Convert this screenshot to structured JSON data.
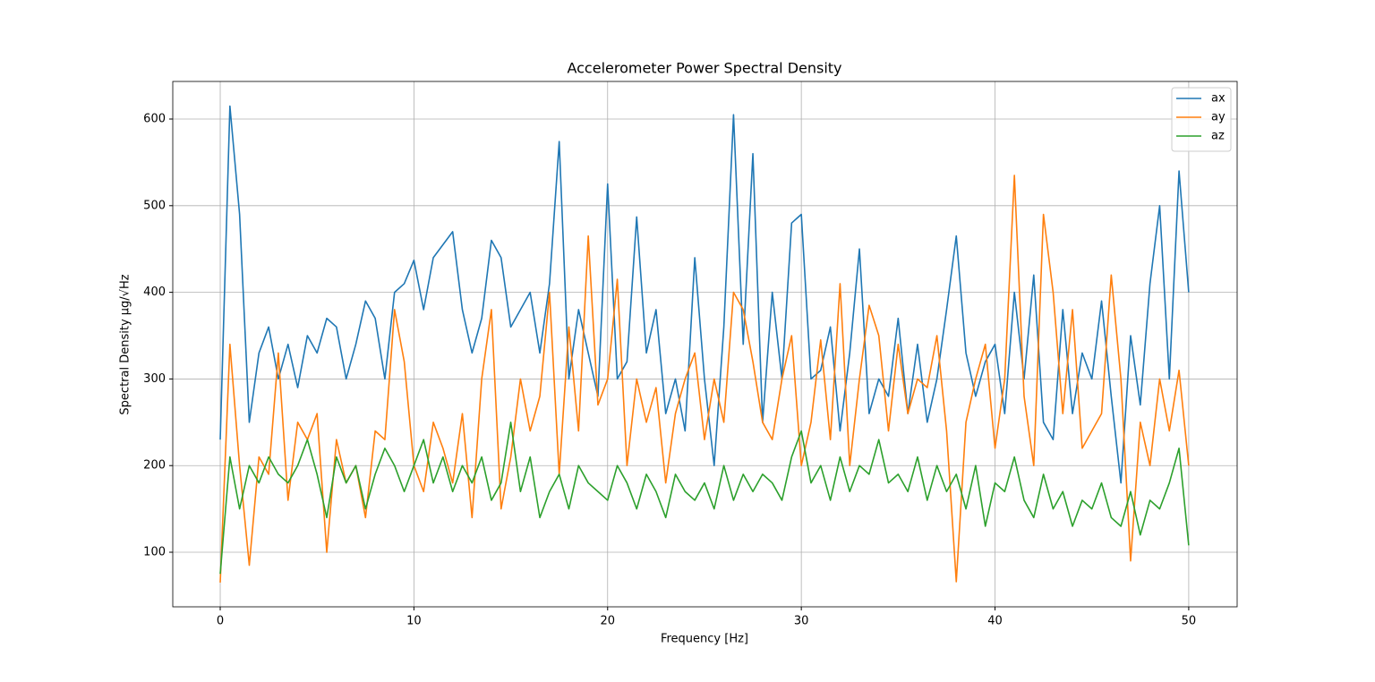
{
  "chart_data": {
    "type": "line",
    "title": "Accelerometer Power Spectral Density",
    "x_label": "Frequency [Hz]",
    "y_label": "Spectral Density  μg/√Hz",
    "x": [
      0,
      0.5,
      1,
      1.5,
      2,
      2.5,
      3,
      3.5,
      4,
      4.5,
      5,
      5.5,
      6,
      6.5,
      7,
      7.5,
      8,
      8.5,
      9,
      9.5,
      10,
      10.5,
      11,
      11.5,
      12,
      12.5,
      13,
      13.5,
      14,
      14.5,
      15,
      15.5,
      16,
      16.5,
      17,
      17.5,
      18,
      18.5,
      19,
      19.5,
      20,
      20.5,
      21,
      21.5,
      22,
      22.5,
      23,
      23.5,
      24,
      24.5,
      25,
      25.5,
      26,
      26.5,
      27,
      27.5,
      28,
      28.5,
      29,
      29.5,
      30,
      30.5,
      31,
      31.5,
      32,
      32.5,
      33,
      33.5,
      34,
      34.5,
      35,
      35.5,
      36,
      36.5,
      37,
      37.5,
      38,
      38.5,
      39,
      39.5,
      40,
      40.5,
      41,
      41.5,
      42,
      42.5,
      43,
      43.5,
      44,
      44.5,
      45,
      45.5,
      46,
      46.5,
      47,
      47.5,
      48,
      48.5,
      49,
      49.5,
      50
    ],
    "series": [
      {
        "name": "ax",
        "color": "#1f77b4",
        "values": [
          230,
          615,
          490,
          250,
          330,
          360,
          300,
          340,
          290,
          350,
          330,
          370,
          360,
          300,
          340,
          390,
          370,
          300,
          400,
          410,
          437,
          380,
          440,
          455,
          470,
          380,
          330,
          370,
          460,
          440,
          360,
          380,
          400,
          330,
          410,
          574,
          300,
          380,
          330,
          280,
          525,
          300,
          320,
          487,
          330,
          380,
          260,
          300,
          240,
          440,
          300,
          200,
          360,
          605,
          340,
          560,
          250,
          400,
          300,
          480,
          490,
          300,
          310,
          360,
          240,
          330,
          450,
          260,
          300,
          280,
          370,
          260,
          340,
          250,
          300,
          380,
          465,
          330,
          280,
          320,
          340,
          260,
          400,
          300,
          420,
          250,
          230,
          380,
          260,
          330,
          300,
          390,
          280,
          180,
          350,
          270,
          410,
          500,
          300,
          540,
          400
        ]
      },
      {
        "name": "ay",
        "color": "#ff7f0e",
        "values": [
          65,
          340,
          200,
          85,
          210,
          190,
          330,
          160,
          250,
          230,
          260,
          100,
          230,
          180,
          200,
          140,
          240,
          230,
          380,
          320,
          200,
          170,
          250,
          220,
          180,
          260,
          140,
          300,
          380,
          150,
          210,
          300,
          240,
          280,
          400,
          190,
          360,
          240,
          465,
          270,
          300,
          415,
          200,
          300,
          250,
          290,
          180,
          260,
          300,
          330,
          230,
          300,
          250,
          400,
          380,
          320,
          250,
          230,
          300,
          350,
          200,
          250,
          345,
          230,
          410,
          200,
          300,
          385,
          350,
          240,
          340,
          260,
          300,
          290,
          350,
          240,
          66,
          250,
          300,
          340,
          220,
          300,
          535,
          280,
          200,
          490,
          400,
          260,
          380,
          220,
          240,
          260,
          420,
          300,
          90,
          250,
          200,
          300,
          240,
          310,
          200
        ]
      },
      {
        "name": "az",
        "color": "#2ca02c",
        "values": [
          75,
          210,
          150,
          200,
          180,
          210,
          190,
          180,
          200,
          230,
          190,
          140,
          210,
          180,
          200,
          150,
          190,
          220,
          200,
          170,
          200,
          230,
          180,
          210,
          170,
          200,
          180,
          210,
          160,
          180,
          250,
          170,
          210,
          140,
          170,
          190,
          150,
          200,
          180,
          170,
          160,
          200,
          180,
          150,
          190,
          170,
          140,
          190,
          170,
          160,
          180,
          150,
          200,
          160,
          190,
          170,
          190,
          180,
          160,
          210,
          240,
          180,
          200,
          160,
          210,
          170,
          200,
          190,
          230,
          180,
          190,
          170,
          210,
          160,
          200,
          170,
          190,
          150,
          200,
          130,
          180,
          170,
          210,
          160,
          140,
          190,
          150,
          170,
          130,
          160,
          150,
          180,
          140,
          130,
          170,
          120,
          160,
          150,
          180,
          220,
          108
        ]
      }
    ],
    "xlim": [
      -2.45,
      52.5
    ],
    "ylim": [
      37,
      643.4
    ],
    "xticks": [
      0,
      10,
      20,
      30,
      40,
      50
    ],
    "yticks": [
      100,
      200,
      300,
      400,
      500,
      600
    ],
    "grid": true,
    "legend": "upper right"
  }
}
